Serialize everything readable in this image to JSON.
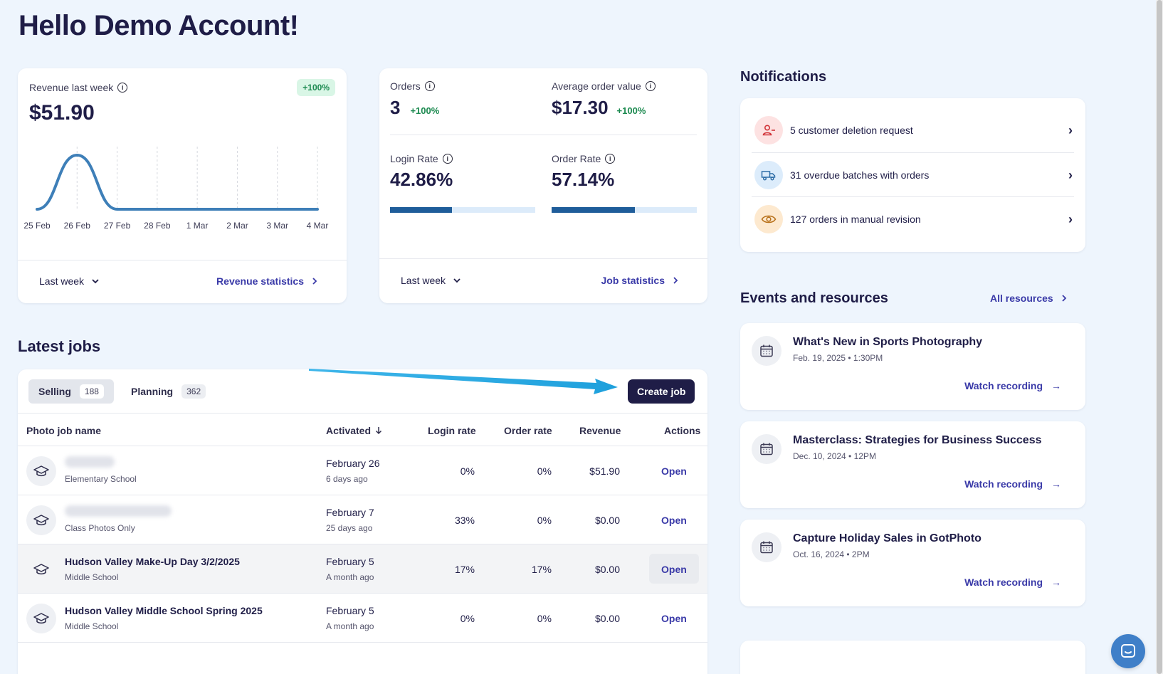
{
  "greeting": "Hello Demo Account!",
  "revenue_card": {
    "label": "Revenue last week",
    "value": "$51.90",
    "badge": "+100%",
    "period": "Last week",
    "link": "Revenue statistics"
  },
  "chart_data": {
    "type": "line",
    "x": [
      "25 Feb",
      "26 Feb",
      "27 Feb",
      "28 Feb",
      "1 Mar",
      "2 Mar",
      "3 Mar",
      "4 Mar"
    ],
    "values": [
      0,
      51.9,
      0,
      0,
      0,
      0,
      0,
      0
    ],
    "title": "",
    "xlabel": "",
    "ylabel": "",
    "grid": "vertical dashed",
    "color": "#3e7fb8"
  },
  "stats_card": {
    "orders_label": "Orders",
    "orders_value": "3",
    "orders_change": "+100%",
    "aov_label": "Average order value",
    "aov_value": "$17.30",
    "aov_change": "+100%",
    "login_label": "Login Rate",
    "login_value": "42.86%",
    "login_progress": 0.4286,
    "order_rate_label": "Order Rate",
    "order_rate_value": "57.14%",
    "order_rate_progress": 0.5714,
    "period": "Last week",
    "link": "Job statistics"
  },
  "notifications": {
    "title": "Notifications",
    "items": [
      {
        "text": "5 customer deletion request",
        "icon": "user-minus-icon",
        "color": "#fde2e2"
      },
      {
        "text": "31 overdue batches with orders",
        "icon": "truck-icon",
        "color": "#dcecfb"
      },
      {
        "text": "127 orders in manual revision",
        "icon": "eye-icon",
        "color": "#fde9cf"
      }
    ]
  },
  "events": {
    "title": "Events and resources",
    "all_link": "All resources",
    "items": [
      {
        "title": "What's New in Sports Photography",
        "date": "Feb. 19, 2025 • 1:30PM",
        "link": "Watch recording"
      },
      {
        "title": "Masterclass: Strategies for Business Success",
        "date": "Dec. 10, 2024 • 12PM",
        "link": "Watch recording"
      },
      {
        "title": "Capture Holiday Sales in GotPhoto",
        "date": "Oct. 16, 2024 • 2PM",
        "link": "Watch recording"
      }
    ]
  },
  "jobs": {
    "title": "Latest jobs",
    "tabs": [
      {
        "label": "Selling",
        "count": "188"
      },
      {
        "label": "Planning",
        "count": "362"
      }
    ],
    "create_button": "Create job",
    "columns": {
      "name": "Photo job name",
      "activated": "Activated",
      "login": "Login rate",
      "order": "Order rate",
      "revenue": "Revenue",
      "actions": "Actions"
    },
    "rows": [
      {
        "name": "",
        "sub": "Elementary School",
        "date": "February 26",
        "ago": "6 days ago",
        "login": "0%",
        "order": "0%",
        "revenue": "$51.90",
        "action": "Open"
      },
      {
        "name": "",
        "sub": "Class Photos Only",
        "date": "February 7",
        "ago": "25 days ago",
        "login": "33%",
        "order": "0%",
        "revenue": "$0.00",
        "action": "Open"
      },
      {
        "name": "Hudson Valley Make-Up Day 3/2/2025",
        "sub": "Middle School",
        "date": "February 5",
        "ago": "A month ago",
        "login": "17%",
        "order": "17%",
        "revenue": "$0.00",
        "action": "Open"
      },
      {
        "name": "Hudson Valley Middle School Spring 2025",
        "sub": "Middle School",
        "date": "February 5",
        "ago": "A month ago",
        "login": "0%",
        "order": "0%",
        "revenue": "$0.00",
        "action": "Open"
      }
    ]
  }
}
